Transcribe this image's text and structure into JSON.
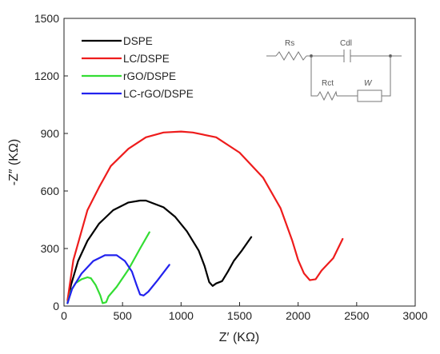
{
  "chart_data": {
    "type": "line",
    "xlabel": "Z′ (KΩ)",
    "ylabel": "-Z″ (KΩ)",
    "xlim": [
      0,
      3000
    ],
    "ylim": [
      0,
      1500
    ],
    "x_ticks": [
      0,
      500,
      1000,
      1500,
      2000,
      2500,
      3000
    ],
    "y_ticks": [
      0,
      300,
      600,
      900,
      1200,
      1500
    ],
    "grid": false,
    "legend_position": "top-left",
    "series": [
      {
        "name": "DSPE",
        "color": "#000000",
        "points": [
          [
            30,
            15
          ],
          [
            60,
            110
          ],
          [
            120,
            235
          ],
          [
            200,
            340
          ],
          [
            300,
            430
          ],
          [
            420,
            500
          ],
          [
            550,
            540
          ],
          [
            650,
            550
          ],
          [
            700,
            550
          ],
          [
            850,
            515
          ],
          [
            950,
            465
          ],
          [
            1050,
            390
          ],
          [
            1150,
            290
          ],
          [
            1200,
            210
          ],
          [
            1240,
            125
          ],
          [
            1270,
            105
          ],
          [
            1300,
            118
          ],
          [
            1350,
            130
          ],
          [
            1400,
            180
          ],
          [
            1450,
            235
          ],
          [
            1520,
            290
          ],
          [
            1600,
            360
          ]
        ]
      },
      {
        "name": "LC/DSPE",
        "color": "#ee1c1c",
        "points": [
          [
            30,
            30
          ],
          [
            80,
            240
          ],
          [
            200,
            500
          ],
          [
            300,
            620
          ],
          [
            400,
            730
          ],
          [
            550,
            820
          ],
          [
            700,
            880
          ],
          [
            850,
            905
          ],
          [
            1000,
            910
          ],
          [
            1100,
            905
          ],
          [
            1300,
            880
          ],
          [
            1500,
            800
          ],
          [
            1700,
            670
          ],
          [
            1850,
            510
          ],
          [
            1950,
            340
          ],
          [
            2000,
            240
          ],
          [
            2050,
            170
          ],
          [
            2100,
            135
          ],
          [
            2150,
            140
          ],
          [
            2200,
            185
          ],
          [
            2300,
            250
          ],
          [
            2380,
            350
          ]
        ]
      },
      {
        "name": "rGO/DSPE",
        "color": "#33dd33",
        "points": [
          [
            30,
            15
          ],
          [
            60,
            80
          ],
          [
            100,
            120
          ],
          [
            150,
            140
          ],
          [
            200,
            150
          ],
          [
            230,
            145
          ],
          [
            270,
            110
          ],
          [
            310,
            55
          ],
          [
            330,
            15
          ],
          [
            360,
            20
          ],
          [
            380,
            50
          ],
          [
            450,
            100
          ],
          [
            550,
            190
          ],
          [
            650,
            300
          ],
          [
            730,
            385
          ]
        ]
      },
      {
        "name": "LC-rGO/DSPE",
        "color": "#2222ee",
        "points": [
          [
            30,
            15
          ],
          [
            70,
            90
          ],
          [
            150,
            170
          ],
          [
            250,
            235
          ],
          [
            350,
            265
          ],
          [
            450,
            265
          ],
          [
            520,
            235
          ],
          [
            580,
            180
          ],
          [
            620,
            110
          ],
          [
            650,
            60
          ],
          [
            680,
            55
          ],
          [
            720,
            75
          ],
          [
            800,
            135
          ],
          [
            900,
            215
          ]
        ]
      }
    ],
    "inset_circuit": {
      "labels": [
        "Rs",
        "Cdl",
        "Rct",
        "W"
      ]
    }
  }
}
